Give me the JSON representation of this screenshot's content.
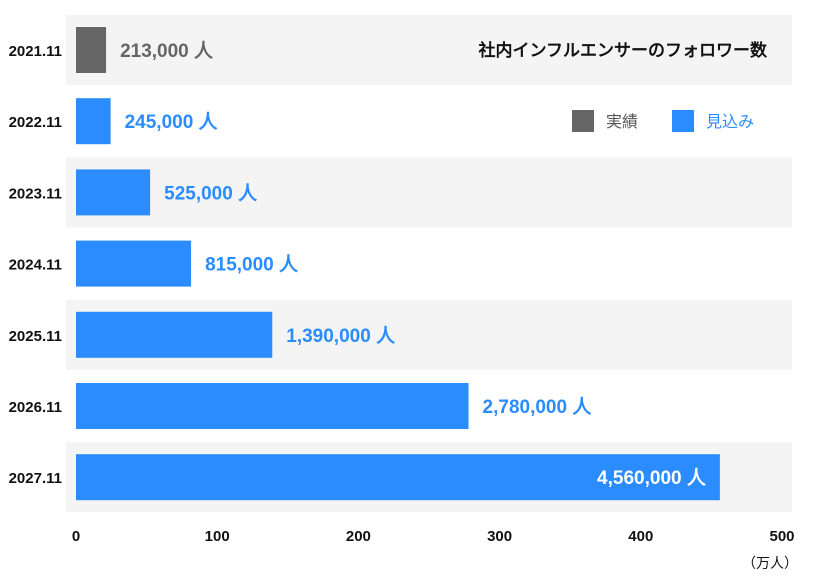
{
  "chart_data": {
    "type": "bar",
    "orientation": "horizontal",
    "title": "社内インフルエンサーのフォロワー数",
    "categories": [
      "2021.11",
      "2022.11",
      "2023.11",
      "2024.11",
      "2025.11",
      "2026.11",
      "2027.11"
    ],
    "values": [
      21.3,
      24.5,
      52.5,
      81.5,
      139,
      278,
      456
    ],
    "data_labels": [
      "213,000 人",
      "245,000 人",
      "525,000 人",
      "815,000 人",
      "1,390,000 人",
      "2,780,000 人",
      "4,560,000 人"
    ],
    "bar_kind": [
      "actual",
      "forecast",
      "forecast",
      "forecast",
      "forecast",
      "forecast",
      "forecast"
    ],
    "xlim": [
      0,
      500
    ],
    "xticks": [
      0,
      100,
      200,
      300,
      400,
      500
    ],
    "xlabel": "（万人）",
    "ylabel": "",
    "grid": false,
    "banded_rows": true,
    "legend": {
      "position": "top-right",
      "items": [
        {
          "key": "actual",
          "label": "実績",
          "color": "#666666"
        },
        {
          "key": "forecast",
          "label": "見込み",
          "color": "#2a8cff"
        }
      ]
    },
    "colors": {
      "actual": "#666666",
      "forecast": "#2a8cff",
      "band": "#f4f4f4",
      "label_inside": "#ffffff"
    }
  }
}
